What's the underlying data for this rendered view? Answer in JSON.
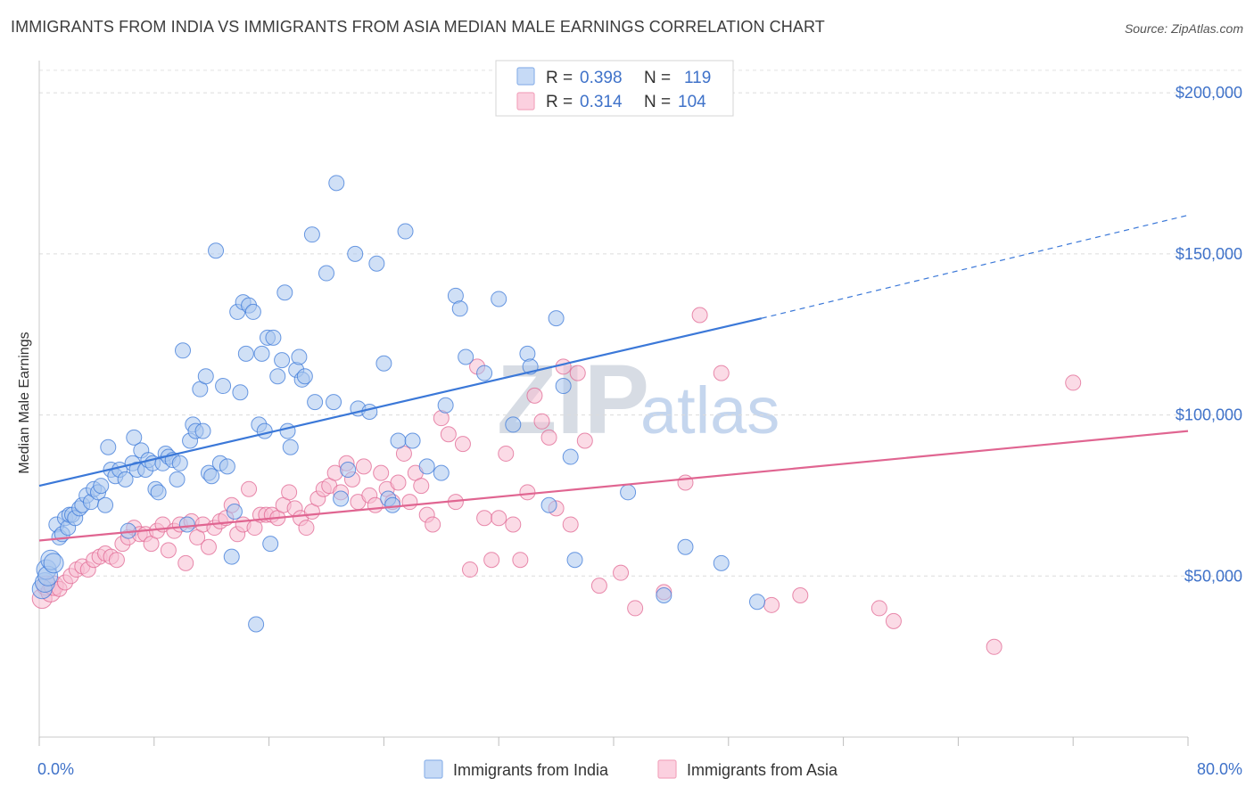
{
  "header": {
    "title": "IMMIGRANTS FROM INDIA VS IMMIGRANTS FROM ASIA MEDIAN MALE EARNINGS CORRELATION CHART",
    "source": "Source: ZipAtlas.com"
  },
  "watermark": {
    "part1": "ZIP",
    "part2": "atlas"
  },
  "legend_top": {
    "rows": [
      {
        "r_label": "R =",
        "r_value": "0.398",
        "n_label": "N =",
        "n_value": "119",
        "color": "#8fb4ea"
      },
      {
        "r_label": "R =",
        "r_value": "0.314",
        "n_label": "N =",
        "n_value": "104",
        "color": "#f2a7bf"
      }
    ]
  },
  "legend_bottom": [
    {
      "label": "Immigrants from India",
      "color": "#8fb4ea"
    },
    {
      "label": "Immigrants from Asia",
      "color": "#f2a7bf"
    }
  ],
  "chart_data": {
    "type": "scatter",
    "title": "IMMIGRANTS FROM INDIA VS IMMIGRANTS FROM ASIA MEDIAN MALE EARNINGS CORRELATION CHART",
    "xlabel": "",
    "ylabel": "Median Male Earnings",
    "xlim": [
      0,
      80
    ],
    "ylim": [
      0,
      210000
    ],
    "x_tick_labels": [
      "0.0%",
      "80.0%"
    ],
    "y_ticks": [
      50000,
      100000,
      150000,
      200000
    ],
    "y_tick_labels": [
      "$50,000",
      "$100,000",
      "$150,000",
      "$200,000"
    ],
    "grid": true,
    "legend_position": "top-center",
    "series": [
      {
        "name": "Immigrants from India",
        "color": "#3b78d8",
        "fill": "#aac6ef",
        "trend": {
          "x0": 0,
          "y0": 78000,
          "x1": 50.3,
          "y1": 130000,
          "dashed_to_x": 80,
          "dashed_to_y": 162000
        },
        "points": [
          [
            0.2,
            46000
          ],
          [
            0.4,
            48000
          ],
          [
            0.5,
            52000
          ],
          [
            0.6,
            50000
          ],
          [
            0.8,
            55000
          ],
          [
            1.0,
            54000
          ],
          [
            1.2,
            66000
          ],
          [
            1.4,
            62000
          ],
          [
            1.6,
            63000
          ],
          [
            1.8,
            68000
          ],
          [
            2.0,
            65000
          ],
          [
            2.1,
            69000
          ],
          [
            2.3,
            69000
          ],
          [
            2.5,
            68000
          ],
          [
            2.8,
            71000
          ],
          [
            3.0,
            72000
          ],
          [
            3.3,
            75000
          ],
          [
            3.6,
            73000
          ],
          [
            3.8,
            77000
          ],
          [
            4.1,
            76000
          ],
          [
            4.3,
            78000
          ],
          [
            4.6,
            72000
          ],
          [
            4.8,
            90000
          ],
          [
            5.0,
            83000
          ],
          [
            5.3,
            81000
          ],
          [
            5.6,
            83000
          ],
          [
            6.0,
            80000
          ],
          [
            6.2,
            64000
          ],
          [
            6.5,
            85000
          ],
          [
            6.6,
            93000
          ],
          [
            6.8,
            83000
          ],
          [
            7.1,
            89000
          ],
          [
            7.4,
            83000
          ],
          [
            7.6,
            86000
          ],
          [
            7.9,
            85000
          ],
          [
            8.1,
            77000
          ],
          [
            8.3,
            76000
          ],
          [
            8.6,
            85000
          ],
          [
            8.8,
            88000
          ],
          [
            9.0,
            87000
          ],
          [
            9.3,
            86000
          ],
          [
            9.6,
            80000
          ],
          [
            9.8,
            85000
          ],
          [
            10.0,
            120000
          ],
          [
            10.3,
            66000
          ],
          [
            10.5,
            92000
          ],
          [
            10.7,
            97000
          ],
          [
            10.9,
            95000
          ],
          [
            11.2,
            108000
          ],
          [
            11.4,
            95000
          ],
          [
            11.6,
            112000
          ],
          [
            11.8,
            82000
          ],
          [
            12.0,
            81000
          ],
          [
            12.3,
            151000
          ],
          [
            12.6,
            85000
          ],
          [
            12.8,
            109000
          ],
          [
            13.1,
            84000
          ],
          [
            13.4,
            56000
          ],
          [
            13.6,
            70000
          ],
          [
            13.8,
            132000
          ],
          [
            14.0,
            107000
          ],
          [
            14.2,
            135000
          ],
          [
            14.4,
            119000
          ],
          [
            14.6,
            134000
          ],
          [
            14.9,
            132000
          ],
          [
            15.1,
            35000
          ],
          [
            15.3,
            97000
          ],
          [
            15.5,
            119000
          ],
          [
            15.7,
            95000
          ],
          [
            15.9,
            124000
          ],
          [
            16.1,
            60000
          ],
          [
            16.3,
            124000
          ],
          [
            16.6,
            112000
          ],
          [
            16.9,
            117000
          ],
          [
            17.1,
            138000
          ],
          [
            17.3,
            95000
          ],
          [
            17.5,
            90000
          ],
          [
            17.9,
            114000
          ],
          [
            18.1,
            118000
          ],
          [
            18.3,
            111000
          ],
          [
            18.5,
            112000
          ],
          [
            19.2,
            104000
          ],
          [
            19.0,
            156000
          ],
          [
            20.0,
            144000
          ],
          [
            20.5,
            104000
          ],
          [
            20.7,
            172000
          ],
          [
            21.0,
            74000
          ],
          [
            21.5,
            83000
          ],
          [
            22.0,
            150000
          ],
          [
            22.2,
            102000
          ],
          [
            23.0,
            101000
          ],
          [
            23.5,
            147000
          ],
          [
            24.0,
            116000
          ],
          [
            24.3,
            74000
          ],
          [
            24.6,
            72000
          ],
          [
            25.0,
            92000
          ],
          [
            25.5,
            157000
          ],
          [
            26.0,
            92000
          ],
          [
            27.0,
            84000
          ],
          [
            28.0,
            82000
          ],
          [
            28.3,
            103000
          ],
          [
            29.0,
            137000
          ],
          [
            29.3,
            133000
          ],
          [
            29.7,
            118000
          ],
          [
            31.0,
            113000
          ],
          [
            32.0,
            136000
          ],
          [
            33.0,
            97000
          ],
          [
            34.0,
            119000
          ],
          [
            34.2,
            115000
          ],
          [
            35.5,
            72000
          ],
          [
            36.0,
            130000
          ],
          [
            36.5,
            109000
          ],
          [
            37.0,
            87000
          ],
          [
            37.3,
            55000
          ],
          [
            41.0,
            76000
          ],
          [
            43.5,
            44000
          ],
          [
            45.0,
            59000
          ],
          [
            47.5,
            54000
          ],
          [
            50.0,
            42000
          ]
        ]
      },
      {
        "name": "Immigrants from Asia",
        "color": "#e06591",
        "fill": "#f7bdd1",
        "trend": {
          "x0": 0,
          "y0": 61000,
          "x1": 80,
          "y1": 95000
        },
        "points": [
          [
            0.2,
            43000
          ],
          [
            0.5,
            47000
          ],
          [
            0.8,
            45000
          ],
          [
            1.0,
            47000
          ],
          [
            1.4,
            46000
          ],
          [
            1.8,
            48000
          ],
          [
            2.2,
            50000
          ],
          [
            2.6,
            52000
          ],
          [
            3.0,
            53000
          ],
          [
            3.4,
            52000
          ],
          [
            3.8,
            55000
          ],
          [
            4.2,
            56000
          ],
          [
            4.6,
            57000
          ],
          [
            5.0,
            56000
          ],
          [
            5.4,
            55000
          ],
          [
            5.8,
            60000
          ],
          [
            6.2,
            62000
          ],
          [
            6.6,
            65000
          ],
          [
            7.0,
            63000
          ],
          [
            7.4,
            63000
          ],
          [
            7.8,
            60000
          ],
          [
            8.2,
            64000
          ],
          [
            8.6,
            66000
          ],
          [
            9.0,
            58000
          ],
          [
            9.4,
            64000
          ],
          [
            9.8,
            66000
          ],
          [
            10.2,
            54000
          ],
          [
            10.6,
            67000
          ],
          [
            11.0,
            62000
          ],
          [
            11.4,
            66000
          ],
          [
            11.8,
            59000
          ],
          [
            12.2,
            65000
          ],
          [
            12.6,
            67000
          ],
          [
            13.0,
            68000
          ],
          [
            13.4,
            72000
          ],
          [
            13.8,
            63000
          ],
          [
            14.2,
            66000
          ],
          [
            14.6,
            77000
          ],
          [
            15.0,
            65000
          ],
          [
            15.4,
            69000
          ],
          [
            15.8,
            69000
          ],
          [
            16.2,
            69000
          ],
          [
            16.6,
            68000
          ],
          [
            17.0,
            72000
          ],
          [
            17.4,
            76000
          ],
          [
            17.8,
            71000
          ],
          [
            18.2,
            68000
          ],
          [
            18.6,
            65000
          ],
          [
            19.0,
            70000
          ],
          [
            19.4,
            74000
          ],
          [
            19.8,
            77000
          ],
          [
            20.2,
            78000
          ],
          [
            20.6,
            82000
          ],
          [
            21.0,
            76000
          ],
          [
            21.4,
            85000
          ],
          [
            21.8,
            80000
          ],
          [
            22.2,
            73000
          ],
          [
            22.6,
            84000
          ],
          [
            23.0,
            75000
          ],
          [
            23.4,
            72000
          ],
          [
            23.8,
            82000
          ],
          [
            24.2,
            77000
          ],
          [
            24.6,
            73000
          ],
          [
            25.0,
            79000
          ],
          [
            25.4,
            88000
          ],
          [
            25.8,
            73000
          ],
          [
            26.2,
            82000
          ],
          [
            26.6,
            78000
          ],
          [
            27.0,
            69000
          ],
          [
            27.4,
            66000
          ],
          [
            28.0,
            99000
          ],
          [
            28.5,
            94000
          ],
          [
            29.0,
            73000
          ],
          [
            29.5,
            91000
          ],
          [
            30.0,
            52000
          ],
          [
            30.5,
            115000
          ],
          [
            31.0,
            68000
          ],
          [
            31.5,
            55000
          ],
          [
            32.0,
            68000
          ],
          [
            32.5,
            88000
          ],
          [
            33.0,
            66000
          ],
          [
            33.5,
            55000
          ],
          [
            34.0,
            76000
          ],
          [
            34.5,
            106000
          ],
          [
            35.0,
            98000
          ],
          [
            35.5,
            93000
          ],
          [
            36.0,
            71000
          ],
          [
            36.5,
            115000
          ],
          [
            37.0,
            66000
          ],
          [
            37.5,
            113000
          ],
          [
            38.0,
            92000
          ],
          [
            39.0,
            47000
          ],
          [
            40.5,
            51000
          ],
          [
            41.5,
            40000
          ],
          [
            43.5,
            45000
          ],
          [
            45.0,
            79000
          ],
          [
            46.0,
            131000
          ],
          [
            47.5,
            113000
          ],
          [
            51.0,
            41000
          ],
          [
            53.0,
            44000
          ],
          [
            58.5,
            40000
          ],
          [
            59.5,
            36000
          ],
          [
            66.5,
            28000
          ],
          [
            72.0,
            110000
          ]
        ]
      }
    ]
  }
}
